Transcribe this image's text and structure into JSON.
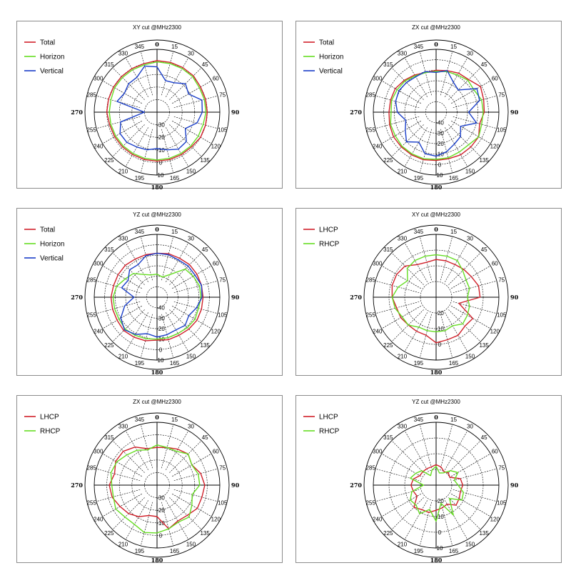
{
  "chart_data": [
    {
      "type": "polar-line",
      "title": "XY cut @MHz2300",
      "angle_labels": [
        "0",
        "15",
        "30",
        "45",
        "60",
        "75",
        "90",
        "105",
        "120",
        "135",
        "150",
        "165",
        "180",
        "195",
        "210",
        "225",
        "240",
        "255",
        "270",
        "285",
        "300",
        "315",
        "330",
        "345"
      ],
      "radial_labels": [
        "-30",
        "-20",
        "-10",
        "0",
        "10"
      ],
      "rlim": [
        -40,
        10
      ],
      "series": [
        {
          "name": "Total",
          "color": "#d0202a",
          "values": [
            1,
            1,
            1,
            1,
            0,
            0,
            0,
            0,
            0,
            -1,
            -1,
            -1,
            -1,
            -1,
            -1,
            -1,
            -1,
            -1,
            0,
            0,
            0,
            0,
            0,
            0
          ]
        },
        {
          "name": "Horizon",
          "color": "#66dd22",
          "values": [
            0,
            0,
            0,
            0,
            -1,
            -1,
            -1,
            -2,
            -2,
            -2,
            -2,
            -2,
            -2,
            -2,
            -2,
            -2,
            -2,
            -2,
            -2,
            -2,
            -1,
            -1,
            -1,
            -1
          ]
        },
        {
          "name": "Vertical",
          "color": "#1a3ec8",
          "values": [
            -4,
            -14,
            -13,
            -8,
            -11,
            -3,
            -4,
            -7,
            -14,
            -7,
            -6,
            -9,
            -11,
            -9,
            -8,
            -6,
            -6,
            -10,
            -30,
            -7,
            -10,
            -8,
            -8,
            -2
          ]
        }
      ]
    },
    {
      "type": "polar-line",
      "title": "ZX cut @MHz2300",
      "angle_labels": [
        "0",
        "15",
        "30",
        "45",
        "60",
        "75",
        "90",
        "105",
        "120",
        "135",
        "150",
        "165",
        "180",
        "195",
        "210",
        "225",
        "240",
        "255",
        "270",
        "285",
        "300",
        "315",
        "330",
        "345"
      ],
      "radial_labels": [
        "-40",
        "-30",
        "-20",
        "-10",
        "0",
        "10"
      ],
      "rlim": [
        -50,
        10
      ],
      "series": [
        {
          "name": "Total",
          "color": "#d0202a",
          "values": [
            -10,
            -9,
            -7,
            -6,
            -1,
            -3,
            -4,
            -7,
            -3,
            -3,
            -3,
            -4,
            -4,
            -3,
            -3,
            -3,
            -3,
            -4,
            -5,
            -5,
            -5,
            -7,
            -9,
            -11
          ]
        },
        {
          "name": "Horizon",
          "color": "#66dd22",
          "values": [
            -11,
            -10,
            -9,
            -7,
            -8,
            -5,
            -5,
            -5,
            -3,
            -6,
            -6,
            -5,
            -5,
            -4,
            -4,
            -4,
            -5,
            -5,
            -7,
            -6,
            -7,
            -8,
            -10,
            -11
          ]
        },
        {
          "name": "Vertical",
          "color": "#1a3ec8",
          "values": [
            -12,
            -9,
            -17,
            -20,
            -5,
            -7,
            -19,
            -10,
            -23,
            -17,
            -15,
            -11,
            -8,
            -9,
            -17,
            -10,
            -16,
            -20,
            -13,
            -10,
            -9,
            -10,
            -11,
            -10
          ]
        }
      ]
    },
    {
      "type": "polar-line",
      "title": "YZ cut @MHz2300",
      "angle_labels": [
        "0",
        "15",
        "30",
        "45",
        "60",
        "75",
        "90",
        "105",
        "120",
        "135",
        "150",
        "165",
        "180",
        "195",
        "210",
        "225",
        "240",
        "255",
        "270",
        "285",
        "300",
        "315",
        "330",
        "345"
      ],
      "radial_labels": [
        "-40",
        "-30",
        "-20",
        "-10",
        "0",
        "10"
      ],
      "rlim": [
        -50,
        10
      ],
      "series": [
        {
          "name": "Total",
          "color": "#d0202a",
          "values": [
            -8,
            -7,
            -7,
            -6,
            -6,
            -6,
            -6,
            -6,
            -6,
            -7,
            -8,
            -8,
            -9,
            -7,
            -6,
            -5,
            -6,
            -6,
            -6,
            -7,
            -7,
            -7,
            -8,
            -8
          ]
        },
        {
          "name": "Horizon",
          "color": "#66dd22",
          "values": [
            -28,
            -30,
            -25,
            -12,
            -10,
            -8,
            -8,
            -9,
            -8,
            -9,
            -10,
            -10,
            -10,
            -9,
            -8,
            -7,
            -8,
            -8,
            -8,
            -10,
            -15,
            -18,
            -25,
            -28
          ]
        },
        {
          "name": "Vertical",
          "color": "#1a3ec8",
          "values": [
            -8,
            -8,
            -9,
            -8,
            -8,
            -6,
            -7,
            -11,
            -15,
            -12,
            -14,
            -13,
            -12,
            -14,
            -9,
            -6,
            -10,
            -18,
            -28,
            -15,
            -18,
            -13,
            -14,
            -9
          ]
        }
      ]
    },
    {
      "type": "polar-line",
      "title": "XY cut @MHz2300",
      "angle_labels": [
        "0",
        "15",
        "30",
        "45",
        "60",
        "75",
        "90",
        "105",
        "120",
        "135",
        "150",
        "165",
        "180",
        "195",
        "210",
        "225",
        "240",
        "255",
        "270",
        "285",
        "300",
        "315",
        "330",
        "345"
      ],
      "radial_labels": [
        "-20",
        "-10",
        "0"
      ],
      "rlim": [
        -30,
        0
      ],
      "series": [
        {
          "name": "LHCP",
          "color": "#d0202a",
          "values": [
            -6,
            -6,
            -6,
            -5,
            -4,
            -2,
            -2,
            -15,
            -3,
            -4,
            -2,
            -2,
            -1,
            -5,
            -5,
            -5,
            -4,
            -4,
            -2,
            -1,
            -1,
            -2,
            -6,
            -7
          ]
        },
        {
          "name": "RHCP",
          "color": "#66dd22",
          "values": [
            -3,
            -3,
            -3,
            -6,
            -8,
            -8,
            -10,
            -8,
            -7,
            -6,
            -9,
            -8,
            -8,
            -8,
            -8,
            -5,
            -5,
            -3,
            -2,
            -5,
            -9,
            -4,
            -3,
            -3
          ]
        }
      ]
    },
    {
      "type": "polar-line",
      "title": "ZX cut @MHz2300",
      "angle_labels": [
        "0",
        "15",
        "30",
        "45",
        "60",
        "75",
        "90",
        "105",
        "120",
        "135",
        "150",
        "165",
        "180",
        "195",
        "210",
        "225",
        "240",
        "255",
        "270",
        "285",
        "300",
        "315",
        "330",
        "345"
      ],
      "radial_labels": [
        "-30",
        "-20",
        "-10",
        "0"
      ],
      "rlim": [
        -40,
        0
      ],
      "series": [
        {
          "name": "LHCP",
          "color": "#d0202a",
          "values": [
            -10,
            -9,
            -7,
            -5,
            -8,
            -4,
            -2,
            -3,
            -3,
            -6,
            -7,
            -4,
            -15,
            -15,
            -11,
            -8,
            -6,
            -3,
            -2,
            -5,
            -2,
            -2,
            -5,
            -10
          ]
        },
        {
          "name": "RHCP",
          "color": "#66dd22",
          "values": [
            -8,
            -9,
            -9,
            -5,
            -8,
            -6,
            -6,
            -11,
            -8,
            -4,
            -6,
            -4,
            -2,
            -1,
            -4,
            -4,
            -2,
            -4,
            -4,
            -2,
            -3,
            -6,
            -8,
            -11
          ]
        }
      ]
    },
    {
      "type": "polar-line",
      "title": "YZ cut @MHz2300",
      "angle_labels": [
        "0",
        "15",
        "30",
        "45",
        "60",
        "75",
        "90",
        "105",
        "120",
        "135",
        "150",
        "165",
        "180",
        "195",
        "210",
        "225",
        "240",
        "255",
        "270",
        "285",
        "300",
        "315",
        "330",
        "345"
      ],
      "radial_labels": [
        "-20",
        "-10",
        "0",
        "10"
      ],
      "rlim": [
        -30,
        10
      ],
      "series": [
        {
          "name": "LHCP",
          "color": "#d0202a",
          "values": [
            -17,
            -18,
            -20,
            -19,
            -20,
            -14,
            -13,
            -14,
            -13,
            -12,
            -16,
            -15,
            -14,
            -12,
            -12,
            -10,
            -16,
            -15,
            -14,
            -15,
            -18,
            -18,
            -18,
            -18
          ]
        },
        {
          "name": "RHCP",
          "color": "#66dd22",
          "values": [
            -18,
            -22,
            -21,
            -17,
            -14,
            -18,
            -16,
            -12,
            -11,
            -18,
            -8,
            -18,
            -7,
            -14,
            -9,
            -12,
            -11,
            -14,
            -22,
            -13,
            -15,
            -17,
            -23,
            -20
          ]
        }
      ]
    }
  ]
}
